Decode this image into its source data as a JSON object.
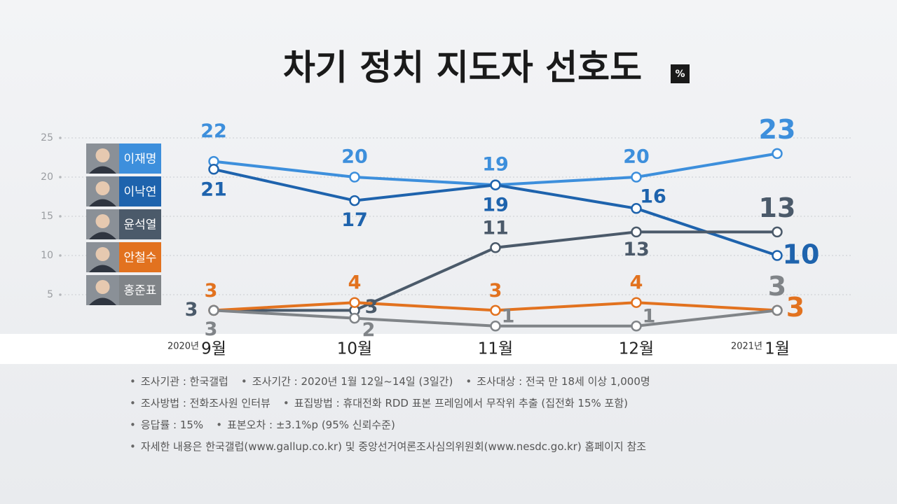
{
  "chart_data": {
    "type": "line",
    "title": "차기 정치 지도자 선호도",
    "unit": "%",
    "categories": [
      "9월",
      "10월",
      "11월",
      "12월",
      "1월"
    ],
    "year_labels": [
      "2020년",
      null,
      null,
      null,
      "2021년"
    ],
    "series": [
      {
        "name": "이재명",
        "color": "#3d8fdc",
        "values": [
          22,
          20,
          19,
          20,
          23
        ]
      },
      {
        "name": "이낙연",
        "color": "#1e63ad",
        "values": [
          21,
          17,
          19,
          16,
          10
        ]
      },
      {
        "name": "윤석열",
        "color": "#4b5a6a",
        "values": [
          3,
          3,
          11,
          13,
          13
        ]
      },
      {
        "name": "안철수",
        "color": "#e2721f",
        "values": [
          3,
          4,
          3,
          4,
          3
        ]
      },
      {
        "name": "홍준표",
        "color": "#808488",
        "values": [
          3,
          2,
          1,
          1,
          3
        ]
      }
    ],
    "ylim": [
      0,
      25
    ],
    "yticks": [
      5,
      10,
      15,
      20,
      25
    ],
    "grid": true
  },
  "notes": [
    [
      "조사기관 : 한국갤럽",
      "조사기간 : 2020년 1월 12일~14일 (3일간)",
      "조사대상 : 전국 만 18세 이상 1,000명"
    ],
    [
      "조사방법 : 전화조사원 인터뷰",
      "표집방법 : 휴대전화 RDD 표본 프레임에서 무작위 추출 (집전화 15% 포함)"
    ],
    [
      "응답률 : 15%",
      "표본오차 : ±3.1%p (95% 신뢰수준)"
    ],
    [
      "자세한 내용은 한국갤럽(www.gallup.co.kr) 및 중앙선거여론조사심의위원회(www.nesdc.go.kr) 홈페이지 참조"
    ]
  ]
}
